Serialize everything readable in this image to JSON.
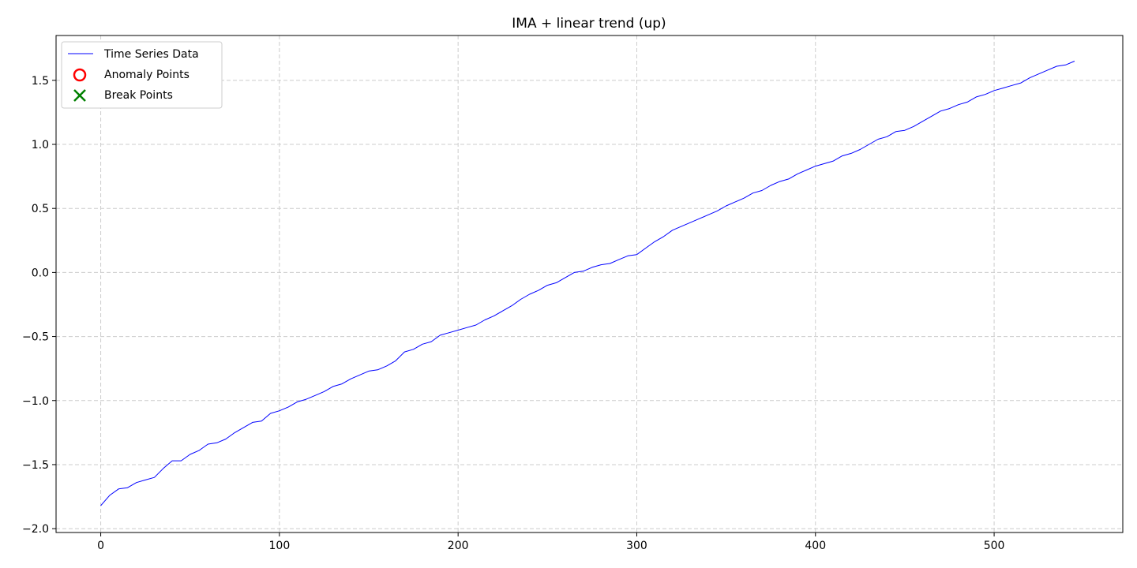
{
  "chart_data": {
    "type": "line",
    "title": "IMA + linear trend (up)",
    "xlabel": "",
    "ylabel": "",
    "xlim": [
      -25,
      572
    ],
    "ylim": [
      -2.03,
      1.85
    ],
    "x_ticks": [
      0,
      100,
      200,
      300,
      400,
      500
    ],
    "x_tick_labels": [
      "0",
      "100",
      "200",
      "300",
      "400",
      "500"
    ],
    "y_ticks": [
      -2.0,
      -1.5,
      -1.0,
      -0.5,
      0.0,
      0.5,
      1.0,
      1.5
    ],
    "y_tick_labels": [
      "−2.0",
      "−1.5",
      "−1.0",
      "−0.5",
      "0.0",
      "0.5",
      "1.0",
      "1.5"
    ],
    "grid": true,
    "legend_position": "upper-left",
    "legend": [
      {
        "label": "Time Series Data",
        "marker": "line",
        "color": "#0000ff"
      },
      {
        "label": "Anomaly Points",
        "marker": "circle",
        "color": "#ff0000"
      },
      {
        "label": "Break Points",
        "marker": "x",
        "color": "#008000"
      }
    ],
    "series": [
      {
        "name": "Time Series Data",
        "color": "#0000ff",
        "x": [
          0,
          5,
          10,
          15,
          20,
          25,
          30,
          35,
          40,
          45,
          50,
          55,
          60,
          65,
          70,
          75,
          80,
          85,
          90,
          95,
          100,
          105,
          110,
          115,
          120,
          125,
          130,
          135,
          140,
          145,
          150,
          155,
          160,
          165,
          170,
          175,
          180,
          185,
          190,
          195,
          200,
          205,
          210,
          215,
          220,
          225,
          230,
          235,
          240,
          245,
          250,
          255,
          260,
          265,
          270,
          275,
          280,
          285,
          290,
          295,
          300,
          305,
          310,
          315,
          320,
          325,
          330,
          335,
          340,
          345,
          350,
          355,
          360,
          365,
          370,
          375,
          380,
          385,
          390,
          395,
          400,
          405,
          410,
          415,
          420,
          425,
          430,
          435,
          440,
          445,
          450,
          455,
          460,
          465,
          470,
          475,
          480,
          485,
          490,
          495,
          500,
          505,
          510,
          515,
          520,
          525,
          530,
          535,
          540,
          545
        ],
        "y": [
          -1.82,
          -1.74,
          -1.69,
          -1.68,
          -1.64,
          -1.62,
          -1.6,
          -1.53,
          -1.47,
          -1.47,
          -1.42,
          -1.39,
          -1.34,
          -1.33,
          -1.3,
          -1.25,
          -1.21,
          -1.17,
          -1.16,
          -1.1,
          -1.08,
          -1.05,
          -1.01,
          -0.99,
          -0.96,
          -0.93,
          -0.89,
          -0.87,
          -0.83,
          -0.8,
          -0.77,
          -0.76,
          -0.73,
          -0.69,
          -0.62,
          -0.6,
          -0.56,
          -0.54,
          -0.49,
          -0.47,
          -0.45,
          -0.43,
          -0.41,
          -0.37,
          -0.34,
          -0.3,
          -0.26,
          -0.21,
          -0.17,
          -0.14,
          -0.1,
          -0.08,
          -0.04,
          0.0,
          0.01,
          0.04,
          0.06,
          0.07,
          0.1,
          0.13,
          0.14,
          0.19,
          0.24,
          0.28,
          0.33,
          0.36,
          0.39,
          0.42,
          0.45,
          0.48,
          0.52,
          0.55,
          0.58,
          0.62,
          0.64,
          0.68,
          0.71,
          0.73,
          0.77,
          0.8,
          0.83,
          0.85,
          0.87,
          0.91,
          0.93,
          0.96,
          1.0,
          1.04,
          1.06,
          1.1,
          1.11,
          1.14,
          1.18,
          1.22,
          1.26,
          1.28,
          1.31,
          1.33,
          1.37,
          1.39,
          1.42,
          1.44,
          1.46,
          1.48,
          1.52,
          1.55,
          1.58,
          1.61,
          1.62,
          1.65
        ]
      }
    ]
  }
}
